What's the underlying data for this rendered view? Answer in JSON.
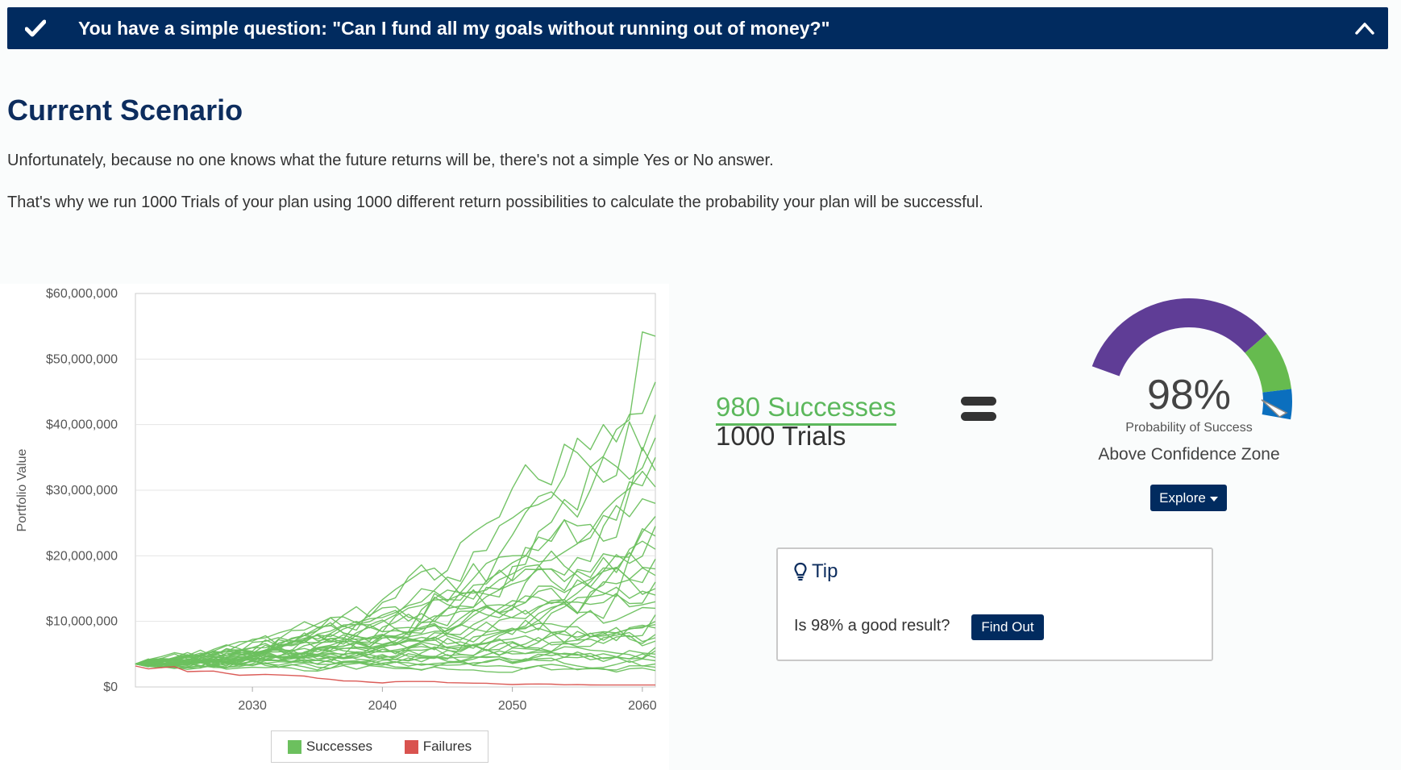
{
  "banner": {
    "title": "You have a simple question: \"Can I fund all my goals without running out of money?\"",
    "check_icon": "check-icon",
    "collapse_icon": "chevron-up-icon"
  },
  "scenario": {
    "heading": "Current Scenario",
    "para1": "Unfortunately, because no one knows what the future returns will be, there's not a simple Yes or No answer.",
    "para2": "That's why we run 1000 Trials of your plan using 1000 different return possibilities to calculate the probability your plan will be successful."
  },
  "result": {
    "successes": "980 Successes",
    "trials": "1000 Trials",
    "equals_icon": "equals-icon"
  },
  "gauge": {
    "percent": "98%",
    "percent_value": 98,
    "label": "Probability of Success",
    "zone": "Above Confidence Zone",
    "explore": "Explore",
    "colors": {
      "low": "#5f3d96",
      "mid": "#66bb4f",
      "high": "#0b6fbe"
    }
  },
  "tip": {
    "title": "Tip",
    "icon": "lightbulb-icon",
    "question": "Is 98% a good result?",
    "button": "Find Out"
  },
  "colors": {
    "navy": "#012b5f",
    "success": "#6cc05e",
    "failure": "#d9534f"
  },
  "chart_data": {
    "type": "line",
    "ylabel": "Portfolio Value",
    "ytick_labels": [
      "$0",
      "$10,000,000",
      "$20,000,000",
      "$30,000,000",
      "$40,000,000",
      "$50,000,000",
      "$60,000,000"
    ],
    "xtick_labels": [
      "2030",
      "2040",
      "2050",
      "2060"
    ],
    "xlim": [
      2021,
      2061
    ],
    "ylim": [
      0,
      60000000
    ],
    "legend": [
      {
        "name": "Successes",
        "color": "#6cc05e"
      },
      {
        "name": "Failures",
        "color": "#d9534f"
      }
    ],
    "series": [
      {
        "name": "Successes",
        "start_value": 3500000,
        "end_values": [
          53500000,
          46500000,
          41500000,
          38000000,
          35000000,
          33000000,
          30500000,
          28000000,
          26000000,
          24500000,
          23000000,
          21000000,
          19500000,
          18000000,
          17000000,
          16000000,
          15000000,
          14000000,
          13000000,
          12000000,
          11000000,
          10000000,
          9500000,
          9000000,
          8000000,
          7500000,
          7000000,
          6000000,
          5500000,
          5000000,
          4500000,
          4000000,
          3500000,
          3000000,
          2500000
        ]
      },
      {
        "name": "Failures",
        "start_value": 3200000,
        "end_values": [
          200000
        ]
      }
    ]
  }
}
